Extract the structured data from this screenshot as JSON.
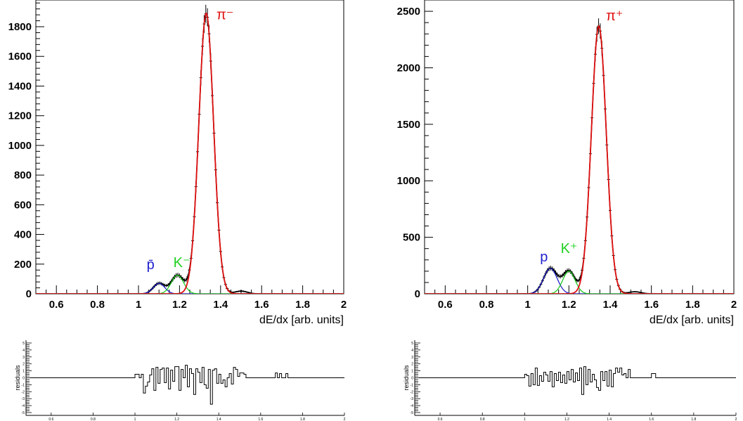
{
  "chart_data": [
    {
      "type": "line",
      "title": "",
      "xlabel": "dE/dx [arb. units]",
      "ylabel": "",
      "xlim": [
        0.5,
        2.0
      ],
      "ylim": [
        0,
        1980
      ],
      "x_ticks": [
        "0.6",
        "0.8",
        "1",
        "1.2",
        "1.4",
        "1.6",
        "1.8",
        "2"
      ],
      "y_ticks": [
        "0",
        "200",
        "400",
        "600",
        "800",
        "1000",
        "1200",
        "1400",
        "1600",
        "1800"
      ],
      "peak_labels": [
        {
          "text": "p̄",
          "x": 1.04,
          "y": 165,
          "color": "#2020d0"
        },
        {
          "text": "K⁻",
          "x": 1.17,
          "y": 180,
          "color": "#20d020"
        },
        {
          "text": "π⁻",
          "x": 1.38,
          "y": 1850,
          "color": "#e01010"
        }
      ],
      "series": [
        {
          "component": "proton",
          "color": "#1515c8",
          "amplitude": 70,
          "mean": 1.1,
          "sigma": 0.028
        },
        {
          "component": "kaon",
          "color": "#12c812",
          "amplitude": 125,
          "mean": 1.19,
          "sigma": 0.03
        },
        {
          "component": "pion",
          "color": "#e01010",
          "amplitude": 1890,
          "mean": 1.33,
          "sigma": 0.036
        },
        {
          "component": "tail",
          "color": "#000000",
          "amplitude": 18,
          "mean": 1.5,
          "sigma": 0.03
        }
      ],
      "residuals": {
        "ylabel": "residuals",
        "ylim": [
          -5,
          5
        ],
        "y_ticks": [
          "-5",
          "-4",
          "-3",
          "-2",
          "-1",
          "0",
          "1",
          "2",
          "3",
          "4",
          "5"
        ],
        "x_ticks": [
          "0.6",
          "0.8",
          "1",
          "1.2",
          "1.4",
          "1.6",
          "1.8",
          "2"
        ],
        "x_start": 0.5,
        "bin_width": 0.01,
        "values": [
          0,
          0,
          0,
          0,
          0,
          0,
          0,
          0,
          0,
          0,
          0,
          0,
          0,
          0,
          0,
          0,
          0,
          0,
          0,
          0,
          0,
          0,
          0,
          0,
          0,
          0,
          0,
          0,
          0,
          0,
          0,
          0,
          0,
          0,
          0,
          0,
          0,
          0,
          0,
          0,
          0,
          0,
          0,
          0,
          0,
          0,
          0,
          0,
          0,
          0,
          0.5,
          0.5,
          0,
          0.5,
          -2.2,
          -1.2,
          -0.6,
          0.4,
          1.3,
          -1.8,
          1.5,
          -0.8,
          1.2,
          1.4,
          -0.7,
          1.4,
          -1.6,
          1.1,
          -0.5,
          1.6,
          1.6,
          -1.8,
          1.2,
          0,
          1.8,
          -1.3,
          1.3,
          0.6,
          -2.4,
          1.3,
          0.8,
          -0.7,
          1.5,
          -1.0,
          -1.5,
          1.2,
          -3.8,
          1.1,
          1.3,
          -0.8,
          0.5,
          -0.8,
          -0.3,
          -1.3,
          0,
          0.6,
          -0.9,
          1.5,
          1.2,
          0.2,
          0.7,
          0.7,
          0.5,
          0,
          0,
          0,
          0,
          0,
          0,
          0,
          0,
          0,
          0,
          0,
          0,
          0,
          0,
          0.7,
          0,
          0.6,
          0,
          0,
          0.6,
          0,
          0,
          0,
          0,
          0,
          0,
          0,
          0,
          0,
          0,
          0,
          0,
          0,
          0,
          0,
          0,
          0,
          0,
          0,
          0,
          0
        ]
      }
    },
    {
      "type": "line",
      "title": "",
      "xlabel": "dE/dx [arb. units]",
      "ylabel": "",
      "xlim": [
        0.5,
        2.0
      ],
      "ylim": [
        0,
        2600
      ],
      "x_ticks": [
        "0.6",
        "0.8",
        "1",
        "1.2",
        "1.4",
        "1.6",
        "1.8",
        "2"
      ],
      "y_ticks": [
        "0",
        "500",
        "1000",
        "1500",
        "2000",
        "2500"
      ],
      "peak_labels": [
        {
          "text": "p",
          "x": 1.06,
          "y": 285,
          "color": "#2020d0"
        },
        {
          "text": "K⁺",
          "x": 1.16,
          "y": 360,
          "color": "#20d020"
        },
        {
          "text": "π⁺",
          "x": 1.38,
          "y": 2420,
          "color": "#e01010"
        }
      ],
      "series": [
        {
          "component": "proton",
          "color": "#1515c8",
          "amplitude": 225,
          "mean": 1.11,
          "sigma": 0.033
        },
        {
          "component": "kaon",
          "color": "#12c812",
          "amplitude": 200,
          "mean": 1.2,
          "sigma": 0.03
        },
        {
          "component": "pion",
          "color": "#e01010",
          "amplitude": 2370,
          "mean": 1.345,
          "sigma": 0.036
        },
        {
          "component": "tail",
          "color": "#000000",
          "amplitude": 18,
          "mean": 1.52,
          "sigma": 0.03
        }
      ],
      "residuals": {
        "ylabel": "residuals",
        "ylim": [
          -5,
          5
        ],
        "y_ticks": [
          "-5",
          "-4",
          "-3",
          "-2",
          "-1",
          "0",
          "1",
          "2",
          "3",
          "4",
          "5"
        ],
        "x_ticks": [
          "0.6",
          "0.8",
          "1",
          "1.2",
          "1.4",
          "1.6",
          "1.8",
          "2"
        ],
        "x_start": 0.5,
        "bin_width": 0.01,
        "values": [
          0,
          0,
          0,
          0,
          0,
          0,
          0,
          0,
          0,
          0,
          0,
          0,
          0,
          0,
          0,
          0,
          0,
          0,
          0,
          0,
          0,
          0,
          0,
          0,
          0,
          0,
          0,
          0,
          0,
          0,
          0,
          0,
          0,
          0,
          0,
          0,
          0,
          0,
          0,
          0,
          0,
          0,
          0,
          0,
          0,
          0,
          0,
          0,
          0,
          0,
          0.5,
          0.3,
          -1.2,
          0.6,
          -1.0,
          1.4,
          -1.1,
          0.3,
          -0.5,
          0.8,
          0.4,
          -0.5,
          0.9,
          -1.3,
          0.6,
          -0.4,
          0.8,
          -0.7,
          0.4,
          -0.8,
          0.9,
          -0.3,
          1.2,
          -0.6,
          0.7,
          -0.4,
          1.4,
          -2.4,
          1.6,
          -1.0,
          1.2,
          -0.6,
          0.5,
          -0.3,
          -1.4,
          -1.8,
          0.9,
          -0.4,
          0.9,
          -1.2,
          1.1,
          -1.3,
          0.6,
          1.4,
          0.8,
          1.4,
          0.4,
          0.6,
          0,
          1.2,
          0,
          0,
          0,
          0,
          0,
          0,
          0,
          0,
          0,
          0,
          0.6,
          0.6,
          0,
          0,
          0,
          0,
          0,
          0,
          0,
          0,
          0,
          0,
          0,
          0,
          0,
          0,
          0,
          0,
          0,
          0,
          0,
          0,
          0,
          0,
          0,
          0,
          0,
          0,
          0,
          0,
          0,
          0,
          0,
          0,
          0,
          0,
          0,
          0,
          0
        ]
      }
    }
  ]
}
